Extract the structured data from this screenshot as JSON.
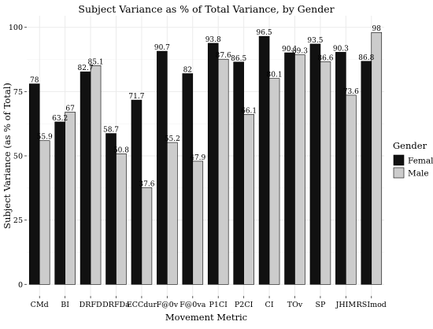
{
  "chart_data": {
    "type": "bar",
    "title": "Subject Variance as % of Total Variance, by Gender",
    "xlabel": "Movement Metric",
    "ylabel": "Subject Variance (as % of Total)",
    "ylim": [
      0,
      100
    ],
    "yticks": [
      "0",
      "25",
      "50",
      "75",
      "100"
    ],
    "grid": true,
    "legend_position": "right",
    "legend_title": "Gender",
    "categories": [
      "CMd",
      "BI",
      "DRFD",
      "DRFDa",
      "ECCdur",
      "F@0v",
      "F@0va",
      "P1CI",
      "P2CI",
      "CI",
      "TOv",
      "SP",
      "JHIM",
      "RSImod"
    ],
    "series": [
      {
        "name": "Female",
        "color": "#111111",
        "values": [
          78,
          63.2,
          82.7,
          58.7,
          71.7,
          90.7,
          82,
          93.8,
          86.5,
          96.5,
          90.1,
          93.5,
          90.3,
          86.8
        ],
        "labels": [
          "78",
          "63.2",
          "82.7",
          "58.7",
          "71.7",
          "90.7",
          "82",
          "93.8",
          "86.5",
          "96.5",
          "90.1",
          "93.5",
          "90.3",
          "86.8"
        ]
      },
      {
        "name": "Male",
        "color": "#cccccc",
        "values": [
          55.9,
          67,
          85.1,
          50.8,
          37.6,
          55.2,
          47.9,
          87.6,
          66.1,
          80.1,
          89.3,
          86.6,
          73.6,
          98
        ],
        "labels": [
          "55.9",
          "67",
          "85.1",
          "50.8",
          "37.6",
          "55.2",
          "47.9",
          "87.6",
          "66.1",
          "80.1",
          "89.3",
          "86.6",
          "73.6",
          "98"
        ]
      }
    ]
  }
}
